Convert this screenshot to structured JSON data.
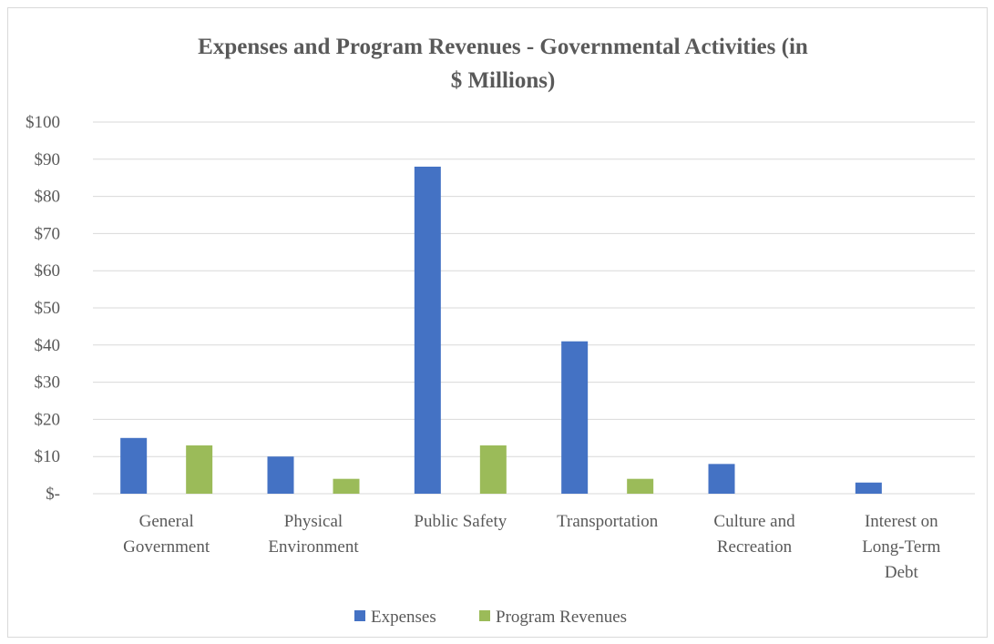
{
  "chart_data": {
    "type": "bar",
    "title_lines": [
      "Expenses and Program Revenues - Governmental Activities (in",
      "$ Millions)"
    ],
    "categories": [
      [
        "General",
        "Government"
      ],
      [
        "Physical",
        "Environment"
      ],
      [
        "Public Safety"
      ],
      [
        "Transportation"
      ],
      [
        "Culture and",
        "Recreation"
      ],
      [
        "Interest on",
        "Long-Term",
        "Debt"
      ]
    ],
    "series": [
      {
        "name": "Expenses",
        "color": "#4472c4",
        "values": [
          15,
          10,
          88,
          41,
          8,
          3
        ]
      },
      {
        "name": "Program Revenues",
        "color": "#9bbb59",
        "values": [
          13,
          4,
          13,
          4,
          0,
          0
        ]
      }
    ],
    "y_ticks": [
      "$-",
      "$10",
      "$20",
      "$30",
      "$40",
      "$50",
      "$60",
      "$70",
      "$80",
      "$90",
      "$100"
    ],
    "ylim": [
      0,
      100
    ],
    "y_step": 10,
    "grid": true,
    "legend_position": "bottom",
    "colors": {
      "gridline": "#d9d9d9",
      "text": "#595959"
    }
  }
}
